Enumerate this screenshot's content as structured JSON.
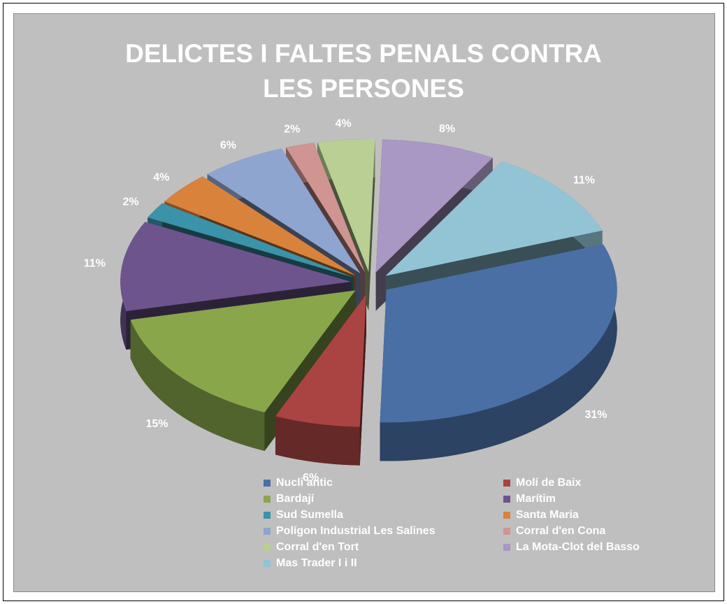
{
  "chart_data": {
    "type": "pie",
    "title": "DELICTES I FALTES PENALS CONTRA LES PERSONES",
    "categories": [
      "Nucli antic",
      "Molí de Baix",
      "Bardají",
      "Marítim",
      "Sud Sumella",
      "Santa Maria",
      "Polígon Industrial Les Salines",
      "Corral d'en Cona",
      "Corral d'en Tort",
      "La Mota-Clot del Basso",
      "Mas Trader I i II"
    ],
    "values": [
      31,
      6,
      15,
      11,
      2,
      4,
      6,
      2,
      4,
      8,
      11
    ],
    "value_labels": [
      "31%",
      "6%",
      "15%",
      "11%",
      "2%",
      "4%",
      "6%",
      "2%",
      "4%",
      "8%",
      "11%"
    ],
    "colors": [
      "#4a6fa5",
      "#a94442",
      "#89a64b",
      "#6e548d",
      "#3a93a8",
      "#d9823b",
      "#8ea5d0",
      "#d09492",
      "#b9cf94",
      "#a898c3",
      "#92c4d6"
    ],
    "legend": "bottom"
  }
}
